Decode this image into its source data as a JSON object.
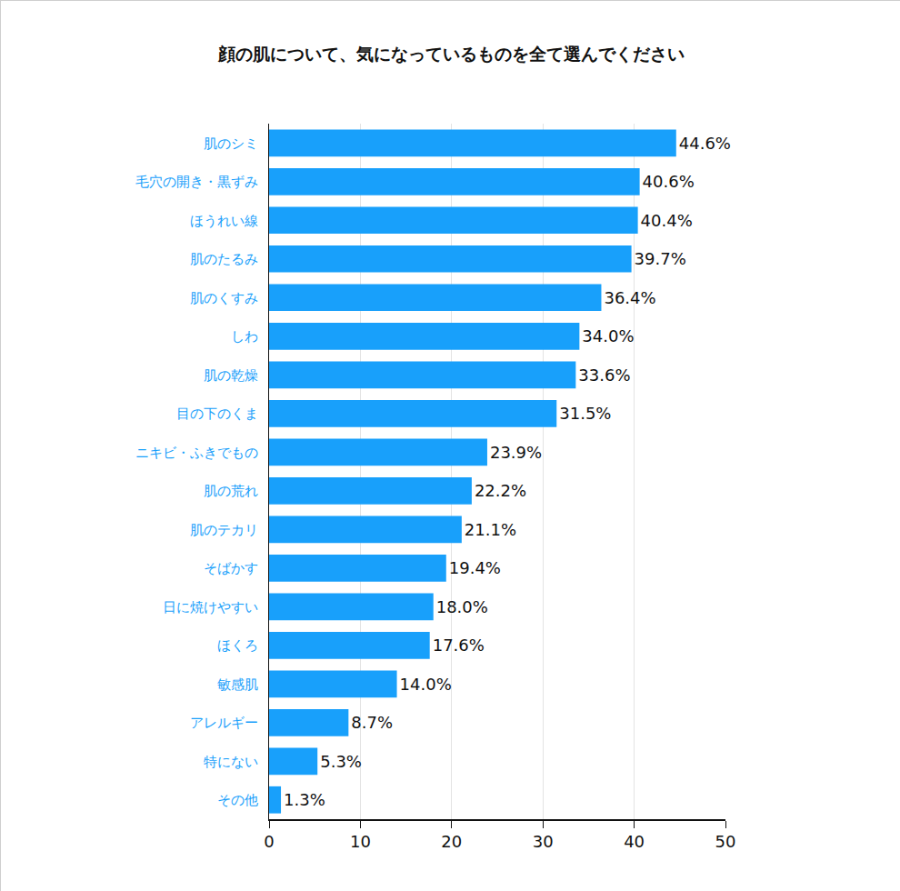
{
  "chart_data": {
    "type": "bar",
    "orientation": "horizontal",
    "title": "顔の肌について、気になっているものを全て選んでください",
    "categories": [
      "肌のシミ",
      "毛穴の開き・黒ずみ",
      "ほうれい線",
      "肌のたるみ",
      "肌のくすみ",
      "しわ",
      "肌の乾燥",
      "目の下のくま",
      "ニキビ・ふきでもの",
      "肌の荒れ",
      "肌のテカリ",
      "そばかす",
      "日に焼けやすい",
      "ほくろ",
      "敏感肌",
      "アレルギー",
      "特にない",
      "その他"
    ],
    "values": [
      44.6,
      40.6,
      40.4,
      39.7,
      36.4,
      34.0,
      33.6,
      31.5,
      23.9,
      22.2,
      21.1,
      19.4,
      18.0,
      17.6,
      14.0,
      8.7,
      5.3,
      1.3
    ],
    "value_labels": [
      "44.6%",
      "40.6%",
      "40.4%",
      "39.7%",
      "36.4%",
      "34.0%",
      "33.6%",
      "31.5%",
      "23.9%",
      "22.2%",
      "21.1%",
      "19.4%",
      "18.0%",
      "17.6%",
      "14.0%",
      "8.7%",
      "5.3%",
      "1.3%"
    ],
    "color": "#18a0fb",
    "xlim": [
      0,
      50
    ],
    "xticks": [
      0,
      10,
      20,
      30,
      40,
      50
    ],
    "grid": true,
    "data_labels": true
  }
}
